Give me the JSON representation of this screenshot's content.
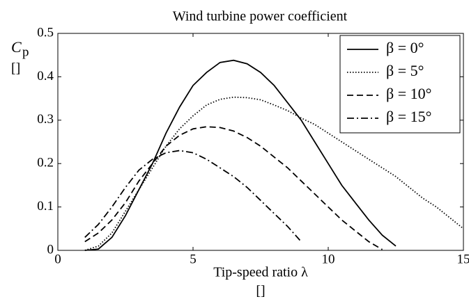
{
  "chart_data": {
    "type": "line",
    "title": "Wind turbine power coefficient",
    "ylabel": "C",
    "ylabel_sub": "p",
    "ylabel_unit": "[]",
    "xlabel": "Tip-speed ratio λ",
    "xlabel_unit": "[]",
    "x": [
      1,
      1.5,
      2,
      2.5,
      3,
      3.5,
      4,
      4.5,
      5,
      5.5,
      6,
      6.5,
      7,
      7.5,
      8,
      8.5,
      9,
      9.5,
      10,
      10.5,
      11,
      11.5,
      12,
      12.5,
      13,
      13.5,
      14,
      14.5,
      15
    ],
    "series": [
      {
        "name": "β = 0°",
        "color": "#000000",
        "dash": "solid",
        "values": [
          0,
          0.003,
          0.03,
          0.08,
          0.14,
          0.2,
          0.27,
          0.33,
          0.38,
          0.41,
          0.433,
          0.438,
          0.43,
          0.41,
          0.38,
          0.34,
          0.3,
          0.25,
          0.2,
          0.15,
          0.11,
          0.07,
          0.035,
          0.01,
          null,
          null,
          null,
          null,
          null
        ]
      },
      {
        "name": "β = 5°",
        "color": "#000000",
        "dash": "dotted",
        "values": [
          0,
          0.01,
          0.04,
          0.09,
          0.14,
          0.19,
          0.24,
          0.28,
          0.31,
          0.335,
          0.348,
          0.353,
          0.352,
          0.347,
          0.335,
          0.322,
          0.305,
          0.29,
          0.27,
          0.25,
          0.23,
          0.21,
          0.19,
          0.17,
          0.145,
          0.12,
          0.1,
          0.075,
          0.05
        ]
      },
      {
        "name": "β = 10°",
        "color": "#000000",
        "dash": "dashed",
        "values": [
          0.02,
          0.04,
          0.07,
          0.11,
          0.16,
          0.2,
          0.24,
          0.265,
          0.28,
          0.285,
          0.283,
          0.275,
          0.26,
          0.24,
          0.215,
          0.19,
          0.16,
          0.13,
          0.1,
          0.07,
          0.045,
          0.02,
          0.002,
          null,
          null,
          null,
          null,
          null,
          null
        ]
      },
      {
        "name": "β = 15°",
        "color": "#000000",
        "dash": "dashdot",
        "values": [
          0.03,
          0.06,
          0.1,
          0.145,
          0.185,
          0.21,
          0.225,
          0.23,
          0.225,
          0.21,
          0.19,
          0.17,
          0.145,
          0.115,
          0.085,
          0.055,
          0.02,
          null,
          null,
          null,
          null,
          null,
          null,
          null,
          null,
          null,
          null,
          null,
          null
        ]
      }
    ],
    "xlim": [
      0,
      15
    ],
    "xticks": [
      0,
      5,
      10,
      15
    ],
    "ylim": [
      0,
      0.5
    ],
    "yticks": [
      0,
      0.1,
      0.2,
      0.3,
      0.4,
      0.5
    ],
    "legend": "upper right"
  }
}
